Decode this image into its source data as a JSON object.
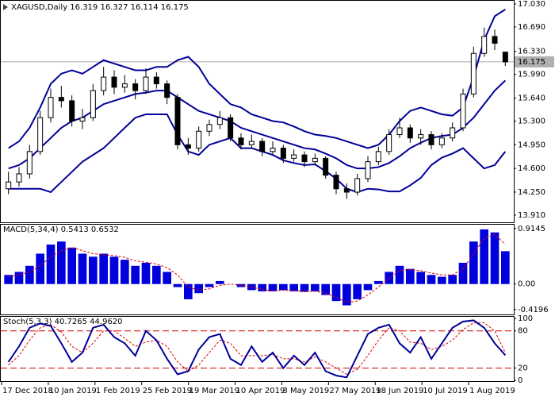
{
  "chart_data": [
    {
      "type": "candlestick",
      "title": "XAGUSD,Daily  16.319 16.327 16.114 16.175",
      "up_color": "#ffffff",
      "down_color": "#000000",
      "open": [
        14.3,
        14.4,
        14.52,
        14.85,
        15.35,
        15.65,
        15.6,
        15.3,
        15.35,
        15.75,
        15.95,
        15.8,
        15.85,
        15.75,
        15.95,
        15.85,
        15.65,
        14.95,
        14.9,
        15.15,
        15.25,
        15.35,
        15.05,
        14.95,
        15.0,
        14.85,
        14.9,
        14.75,
        14.8,
        14.7,
        14.75,
        14.5,
        14.3,
        14.25,
        14.45,
        14.7,
        14.85,
        15.1,
        15.2,
        15.05,
        15.1,
        14.95,
        15.05,
        15.2,
        15.7,
        16.3,
        16.55,
        16.319
      ],
      "high": [
        14.55,
        14.62,
        14.95,
        15.45,
        15.78,
        15.82,
        15.68,
        15.48,
        15.85,
        16.1,
        16.05,
        15.98,
        15.92,
        16.08,
        16.02,
        15.9,
        15.7,
        15.05,
        15.22,
        15.32,
        15.45,
        15.4,
        15.12,
        15.1,
        15.05,
        15.0,
        14.95,
        14.88,
        14.85,
        14.82,
        14.78,
        14.55,
        14.38,
        14.52,
        14.78,
        14.92,
        15.18,
        15.35,
        15.25,
        15.18,
        15.15,
        15.12,
        15.28,
        15.78,
        16.4,
        16.68,
        16.65,
        16.327
      ],
      "low": [
        14.22,
        14.33,
        14.45,
        14.8,
        15.28,
        15.5,
        15.22,
        15.18,
        15.3,
        15.68,
        15.7,
        15.72,
        15.62,
        15.7,
        15.78,
        15.55,
        14.88,
        14.8,
        14.85,
        15.08,
        15.18,
        15.0,
        14.88,
        14.9,
        14.78,
        14.8,
        14.68,
        14.7,
        14.62,
        14.65,
        14.45,
        14.22,
        14.15,
        14.2,
        14.4,
        14.65,
        14.8,
        15.05,
        14.98,
        14.95,
        14.88,
        14.9,
        15.0,
        15.15,
        15.65,
        16.25,
        16.35,
        16.114
      ],
      "close": [
        14.4,
        14.52,
        14.85,
        15.35,
        15.65,
        15.6,
        15.3,
        15.35,
        15.75,
        15.95,
        15.8,
        15.85,
        15.75,
        15.95,
        15.85,
        15.65,
        14.95,
        14.9,
        15.15,
        15.25,
        15.35,
        15.05,
        14.95,
        15.0,
        14.85,
        14.9,
        14.75,
        14.8,
        14.7,
        14.75,
        14.5,
        14.3,
        14.25,
        14.45,
        14.7,
        14.85,
        15.1,
        15.2,
        15.05,
        15.1,
        14.95,
        15.05,
        15.2,
        15.7,
        16.3,
        16.55,
        16.45,
        16.175
      ],
      "bands": {
        "color": "#000099",
        "upper": [
          14.9,
          15.0,
          15.2,
          15.5,
          15.85,
          16.0,
          16.05,
          16.0,
          16.1,
          16.2,
          16.15,
          16.1,
          16.05,
          16.05,
          16.1,
          16.1,
          16.2,
          16.25,
          16.1,
          15.85,
          15.7,
          15.55,
          15.5,
          15.4,
          15.35,
          15.3,
          15.28,
          15.22,
          15.15,
          15.1,
          15.08,
          15.05,
          15.0,
          14.95,
          14.9,
          14.95,
          15.1,
          15.3,
          15.45,
          15.5,
          15.45,
          15.4,
          15.38,
          15.5,
          15.95,
          16.5,
          16.85,
          16.95
        ],
        "middle": [
          14.6,
          14.65,
          14.75,
          14.9,
          15.05,
          15.2,
          15.3,
          15.35,
          15.45,
          15.55,
          15.6,
          15.65,
          15.7,
          15.72,
          15.75,
          15.75,
          15.65,
          15.55,
          15.45,
          15.4,
          15.35,
          15.3,
          15.2,
          15.15,
          15.1,
          15.05,
          15.0,
          14.95,
          14.9,
          14.88,
          14.82,
          14.75,
          14.65,
          14.6,
          14.6,
          14.62,
          14.68,
          14.78,
          14.9,
          14.98,
          15.05,
          15.08,
          15.1,
          15.2,
          15.35,
          15.55,
          15.75,
          15.9
        ],
        "lower": [
          14.3,
          14.3,
          14.3,
          14.3,
          14.25,
          14.4,
          14.55,
          14.7,
          14.8,
          14.9,
          15.05,
          15.2,
          15.35,
          15.4,
          15.4,
          15.4,
          15.1,
          14.85,
          14.8,
          14.95,
          15.0,
          15.05,
          14.9,
          14.9,
          14.85,
          14.8,
          14.72,
          14.68,
          14.65,
          14.66,
          14.56,
          14.45,
          14.3,
          14.25,
          14.3,
          14.29,
          14.26,
          14.26,
          14.35,
          14.46,
          14.65,
          14.76,
          14.82,
          14.9,
          14.75,
          14.6,
          14.65,
          14.85
        ]
      },
      "last_price": 16.175,
      "ylim": [
        13.804,
        17.089
      ],
      "yticks": [
        {
          "value": 17.03,
          "label": "17.030"
        },
        {
          "value": 16.69,
          "label": "16.690"
        },
        {
          "value": 16.33,
          "label": "16.330"
        },
        {
          "value": 15.99,
          "label": "15.990"
        },
        {
          "value": 15.64,
          "label": "15.640"
        },
        {
          "value": 15.3,
          "label": "15.300"
        },
        {
          "value": 14.95,
          "label": "14.950"
        },
        {
          "value": 14.6,
          "label": "14.600"
        },
        {
          "value": 14.25,
          "label": "14.250"
        },
        {
          "value": 13.91,
          "label": "13.910"
        }
      ]
    },
    {
      "type": "macd",
      "title": "MACD(5,34,4) 0.5413 0.6532",
      "histogram": {
        "color": "#0000dd",
        "values": [
          0.15,
          0.2,
          0.3,
          0.5,
          0.65,
          0.7,
          0.6,
          0.5,
          0.45,
          0.5,
          0.45,
          0.4,
          0.3,
          0.35,
          0.3,
          0.2,
          -0.05,
          -0.25,
          -0.15,
          -0.05,
          0.05,
          0.0,
          -0.05,
          -0.1,
          -0.12,
          -0.12,
          -0.1,
          -0.12,
          -0.13,
          -0.12,
          -0.18,
          -0.28,
          -0.35,
          -0.25,
          -0.1,
          0.05,
          0.2,
          0.3,
          0.25,
          0.2,
          0.15,
          0.12,
          0.15,
          0.35,
          0.7,
          0.9,
          0.85,
          0.5413
        ]
      },
      "signal": {
        "color": "#dd0000",
        "values": [
          0.12,
          0.15,
          0.2,
          0.3,
          0.45,
          0.55,
          0.6,
          0.55,
          0.5,
          0.48,
          0.47,
          0.44,
          0.38,
          0.36,
          0.33,
          0.27,
          0.15,
          -0.05,
          -0.1,
          -0.08,
          -0.02,
          0.0,
          -0.02,
          -0.05,
          -0.09,
          -0.11,
          -0.1,
          -0.11,
          -0.12,
          -0.12,
          -0.15,
          -0.22,
          -0.3,
          -0.28,
          -0.18,
          -0.05,
          0.1,
          0.22,
          0.24,
          0.22,
          0.18,
          0.15,
          0.15,
          0.25,
          0.5,
          0.75,
          0.82,
          0.6532
        ]
      },
      "ylim": [
        -0.5,
        0.99
      ],
      "yticks": [
        0.9145,
        {
          "value": 0,
          "label": "0.00"
        },
        -0.4196
      ]
    },
    {
      "type": "stochastic",
      "title": "Stoch(5,3,3) 40.7265 44.9620",
      "main": {
        "color": "#000099",
        "values": [
          30,
          55,
          85,
          92,
          88,
          60,
          30,
          45,
          85,
          90,
          70,
          60,
          40,
          80,
          65,
          35,
          10,
          15,
          50,
          70,
          75,
          35,
          25,
          55,
          30,
          45,
          20,
          40,
          25,
          45,
          15,
          8,
          5,
          40,
          75,
          85,
          90,
          60,
          45,
          70,
          35,
          60,
          85,
          95,
          97,
          85,
          60,
          40.7265
        ]
      },
      "signal": {
        "color": "#dd0000",
        "values": [
          25,
          40,
          65,
          85,
          90,
          78,
          55,
          45,
          60,
          80,
          80,
          68,
          55,
          62,
          65,
          55,
          30,
          15,
          25,
          45,
          65,
          60,
          40,
          40,
          40,
          42,
          35,
          35,
          30,
          38,
          30,
          20,
          10,
          18,
          40,
          65,
          85,
          80,
          62,
          60,
          50,
          55,
          65,
          82,
          93,
          93,
          80,
          44.962
        ]
      },
      "levels": [
        80,
        20
      ],
      "level_color": "#cc0000",
      "ylim": [
        -1,
        104
      ],
      "yticks": [
        100,
        80,
        20,
        0
      ],
      "xtick_labels": [
        "17 Dec 2018",
        "10 Jan 2019",
        "1 Feb 2019",
        "25 Feb 2019",
        "19 Mar 2019",
        "10 Apr 2019",
        "3 May 2019",
        "27 May 2019",
        "18 Jun 2019",
        "10 Jul 2019",
        "1 Aug 2019"
      ]
    }
  ]
}
